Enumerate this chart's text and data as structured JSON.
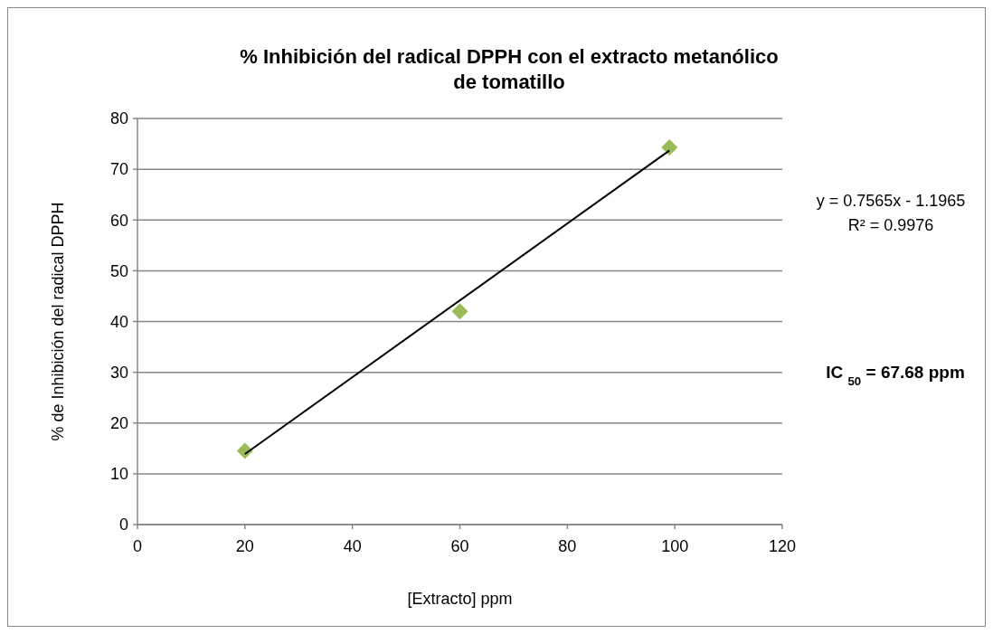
{
  "chart_data": {
    "type": "scatter",
    "title": "%  Inhibición del radical DPPH con el extracto metanólico de tomatillo",
    "xlabel": "[Extracto] ppm",
    "ylabel": "% de Inhibición del radical DPPH",
    "x": [
      20,
      60,
      99
    ],
    "series": [
      {
        "color": "#9bbb59",
        "values": [
          14.5,
          42,
          74.3
        ],
        "marker": "diamond"
      },
      {
        "type": "line",
        "color": "#000000",
        "x": [
          20,
          99
        ],
        "values": [
          13.9,
          73.7
        ],
        "marker": "none",
        "line_style": "solid"
      }
    ],
    "xlim": [
      0,
      120
    ],
    "xticks": [
      0,
      20,
      40,
      60,
      80,
      100,
      120
    ],
    "ylim": [
      0,
      80
    ],
    "yticks": [
      0,
      10,
      20,
      30,
      40,
      50,
      60,
      70,
      80
    ],
    "grid": "y",
    "annotations": [
      "y = 0.7565x - 1.1965",
      "R² = 0.9976",
      "IC $_{50}$ = 67.68 ppm"
    ]
  }
}
